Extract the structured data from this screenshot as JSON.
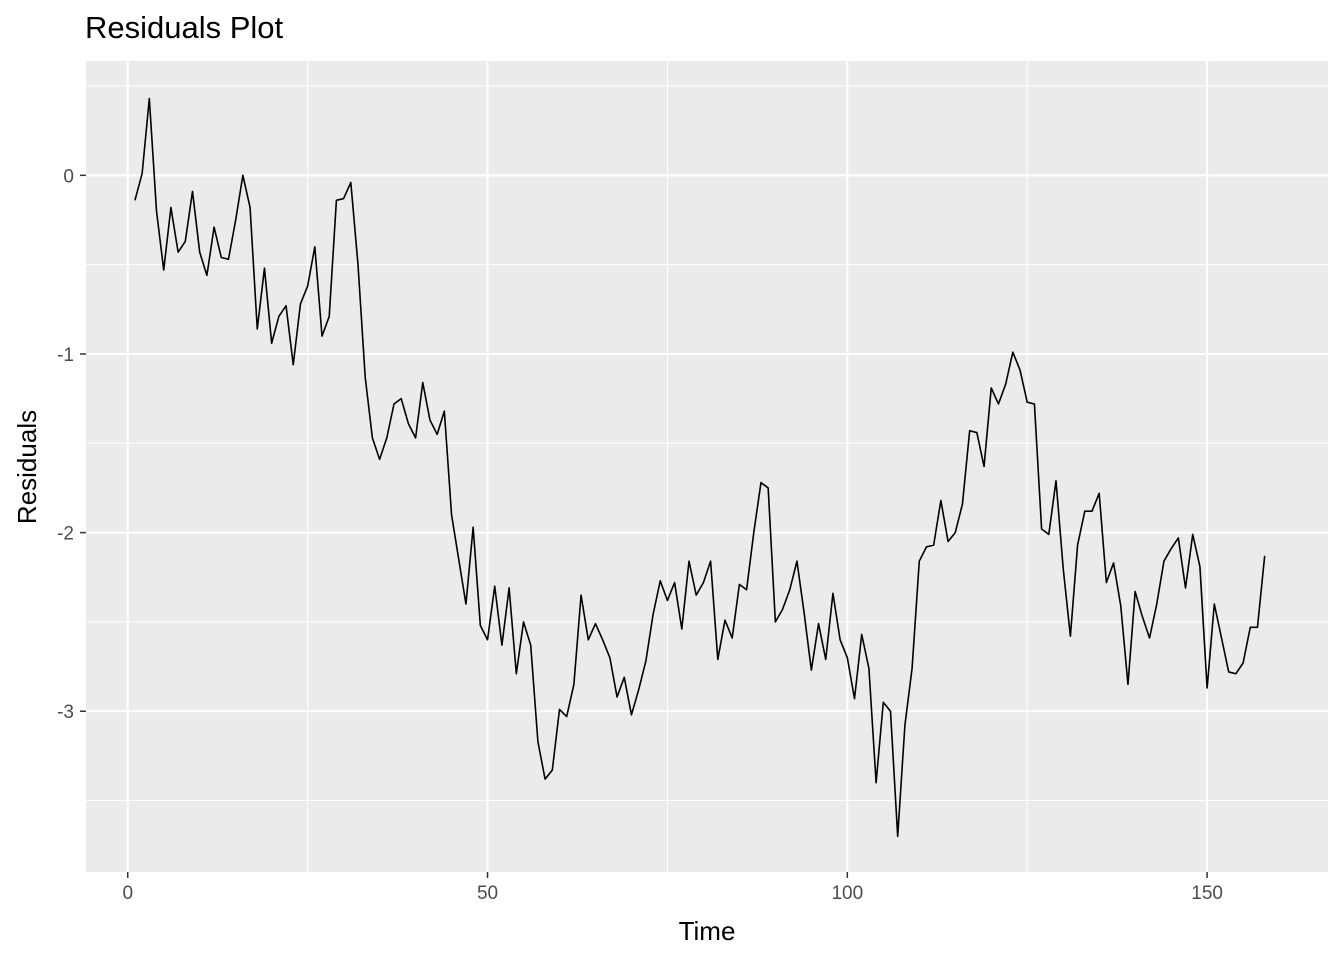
{
  "chart_data": {
    "type": "line",
    "title": "Residuals Plot",
    "xlabel": "Time",
    "ylabel": "Residuals",
    "xlim": [
      -5.8,
      166.8
    ],
    "ylim": [
      -3.9,
      0.64
    ],
    "x_ticks": [
      0,
      50,
      100,
      150
    ],
    "y_ticks": [
      0,
      -1,
      -2,
      -3
    ],
    "x_tick_labels": [
      "0",
      "50",
      "100",
      "150"
    ],
    "y_tick_labels": [
      "0",
      "-1",
      "-2",
      "-3"
    ],
    "grid": true,
    "background": "#ebebeb",
    "line_color": "#000000",
    "series": [
      {
        "x": [
          1,
          2,
          3,
          4,
          5,
          6,
          7,
          8,
          9,
          10,
          11,
          12,
          13,
          14,
          15,
          16,
          17,
          18,
          19,
          20,
          21,
          22,
          23,
          24,
          25,
          26,
          27,
          28,
          29,
          30,
          31,
          32,
          33,
          34,
          35,
          36,
          37,
          38,
          39,
          40,
          41,
          42,
          43,
          44,
          45,
          46,
          47,
          48,
          49,
          50,
          51,
          52,
          53,
          54,
          55,
          56,
          57,
          58,
          59,
          60,
          61,
          62,
          63,
          64,
          65,
          66,
          67,
          68,
          69,
          70,
          71,
          72,
          73,
          74,
          75,
          76,
          77,
          78,
          79,
          80,
          81,
          82,
          83,
          84,
          85,
          86,
          87,
          88,
          89,
          90,
          91,
          92,
          93,
          94,
          95,
          96,
          97,
          98,
          99,
          100,
          101,
          102,
          103,
          104,
          105,
          106,
          107,
          108,
          109,
          110,
          111,
          112,
          113,
          114,
          115,
          116,
          117,
          118,
          119,
          120,
          121,
          122,
          123,
          124,
          125,
          126,
          127,
          128,
          129,
          130,
          131,
          132,
          133,
          134,
          135,
          136,
          137,
          138,
          139,
          140,
          141,
          142,
          143,
          144,
          145,
          146,
          147,
          148,
          149,
          150,
          151,
          152,
          153,
          154,
          155,
          156,
          157,
          158
        ],
        "y": [
          -0.14,
          0.01,
          0.43,
          -0.2,
          -0.53,
          -0.18,
          -0.43,
          -0.37,
          -0.09,
          -0.43,
          -0.56,
          -0.29,
          -0.46,
          -0.47,
          -0.25,
          0.0,
          -0.18,
          -0.86,
          -0.52,
          -0.94,
          -0.79,
          -0.73,
          -1.06,
          -0.72,
          -0.62,
          -0.4,
          -0.9,
          -0.79,
          -0.14,
          -0.13,
          -0.04,
          -0.5,
          -1.13,
          -1.47,
          -1.59,
          -1.47,
          -1.28,
          -1.25,
          -1.39,
          -1.47,
          -1.16,
          -1.37,
          -1.45,
          -1.32,
          -1.9,
          -2.15,
          -2.4,
          -1.97,
          -2.52,
          -2.6,
          -2.3,
          -2.63,
          -2.31,
          -2.79,
          -2.5,
          -2.63,
          -3.17,
          -3.38,
          -3.33,
          -2.99,
          -3.03,
          -2.85,
          -2.35,
          -2.6,
          -2.51,
          -2.6,
          -2.7,
          -2.92,
          -2.81,
          -3.02,
          -2.88,
          -2.72,
          -2.46,
          -2.27,
          -2.38,
          -2.28,
          -2.54,
          -2.16,
          -2.35,
          -2.28,
          -2.16,
          -2.71,
          -2.49,
          -2.59,
          -2.29,
          -2.32,
          -2.0,
          -1.72,
          -1.75,
          -2.5,
          -2.43,
          -2.32,
          -2.16,
          -2.45,
          -2.77,
          -2.51,
          -2.71,
          -2.34,
          -2.6,
          -2.7,
          -2.93,
          -2.57,
          -2.76,
          -3.4,
          -2.95,
          -3.0,
          -3.7,
          -3.08,
          -2.76,
          -2.16,
          -2.08,
          -2.07,
          -1.82,
          -2.05,
          -2.0,
          -1.84,
          -1.43,
          -1.44,
          -1.63,
          -1.19,
          -1.28,
          -1.17,
          -0.99,
          -1.09,
          -1.27,
          -1.28,
          -1.98,
          -2.01,
          -1.71,
          -2.2,
          -2.58,
          -2.07,
          -1.88,
          -1.88,
          -1.78,
          -2.28,
          -2.17,
          -2.41,
          -2.85,
          -2.33,
          -2.47,
          -2.59,
          -2.4,
          -2.16,
          -2.09,
          -2.03,
          -2.31,
          -2.01,
          -2.19,
          -2.87,
          -2.4,
          -2.59,
          -2.78,
          -2.79,
          -2.73,
          -2.53,
          -2.53,
          -2.13
        ]
      }
    ]
  }
}
